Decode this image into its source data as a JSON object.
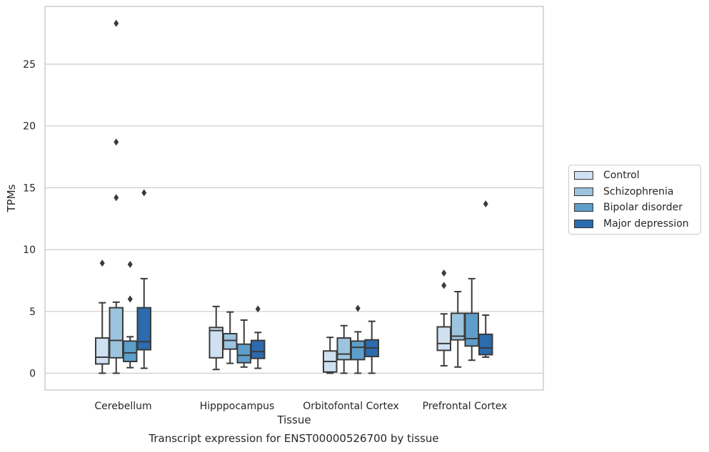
{
  "chart_data": {
    "type": "box",
    "title": "Transcript expression for ENST00000526700 by tissue",
    "xlabel": "Tissue",
    "ylabel": "TPMs",
    "ylim": [
      -1.4,
      29.9
    ],
    "yticks": [
      0,
      5,
      10,
      15,
      20,
      25
    ],
    "grid": true,
    "legend_placement": "right",
    "categories": [
      "Cerebellum",
      "Hipppocampus",
      "Orbitofontal Cortex",
      "Prefrontal Cortex"
    ],
    "series": [
      {
        "name": "Control",
        "color": "#cfe0f1",
        "boxes": [
          {
            "min": 0.0,
            "q1": 0.75,
            "median": 1.3,
            "q3": 2.85,
            "max": 5.7,
            "outliers": [
              8.9
            ]
          },
          {
            "min": 0.3,
            "q1": 1.25,
            "median": 3.45,
            "q3": 3.7,
            "max": 5.4,
            "outliers": []
          },
          {
            "min": 0.0,
            "q1": 0.1,
            "median": 0.95,
            "q3": 1.8,
            "max": 2.9,
            "outliers": []
          },
          {
            "min": 0.6,
            "q1": 1.85,
            "median": 2.4,
            "q3": 3.75,
            "max": 4.8,
            "outliers": [
              7.1,
              8.1
            ]
          }
        ]
      },
      {
        "name": "Schizophrenia",
        "color": "#9dc4df",
        "boxes": [
          {
            "min": 0.0,
            "q1": 1.25,
            "median": 2.65,
            "q3": 5.3,
            "max": 5.75,
            "outliers": [
              14.2,
              18.7,
              28.3
            ]
          },
          {
            "min": 0.8,
            "q1": 1.95,
            "median": 2.65,
            "q3": 3.2,
            "max": 4.95,
            "outliers": []
          },
          {
            "min": 0.0,
            "q1": 1.1,
            "median": 1.55,
            "q3": 2.85,
            "max": 3.85,
            "outliers": []
          },
          {
            "min": 0.5,
            "q1": 2.7,
            "median": 3.0,
            "q3": 4.85,
            "max": 6.6,
            "outliers": []
          }
        ]
      },
      {
        "name": "Bipolar disorder",
        "color": "#5d9fca",
        "boxes": [
          {
            "min": 0.45,
            "q1": 0.95,
            "median": 1.65,
            "q3": 2.6,
            "max": 2.95,
            "outliers": [
              6.0,
              8.8
            ]
          },
          {
            "min": 0.5,
            "q1": 0.85,
            "median": 1.45,
            "q3": 2.35,
            "max": 4.3,
            "outliers": []
          },
          {
            "min": 0.0,
            "q1": 1.1,
            "median": 2.1,
            "q3": 2.6,
            "max": 3.35,
            "outliers": [
              5.25
            ]
          },
          {
            "min": 1.05,
            "q1": 2.2,
            "median": 2.8,
            "q3": 4.85,
            "max": 7.65,
            "outliers": []
          }
        ]
      },
      {
        "name": "Major depression",
        "color": "#2b6bae",
        "boxes": [
          {
            "min": 0.4,
            "q1": 1.9,
            "median": 2.55,
            "q3": 5.3,
            "max": 7.65,
            "outliers": [
              14.6
            ]
          },
          {
            "min": 0.4,
            "q1": 1.2,
            "median": 1.75,
            "q3": 2.65,
            "max": 3.3,
            "outliers": [
              5.2
            ]
          },
          {
            "min": 0.0,
            "q1": 1.35,
            "median": 2.05,
            "q3": 2.7,
            "max": 4.2,
            "outliers": []
          },
          {
            "min": 1.3,
            "q1": 1.5,
            "median": 2.05,
            "q3": 3.15,
            "max": 4.7,
            "outliers": [
              13.7
            ]
          }
        ]
      }
    ]
  }
}
